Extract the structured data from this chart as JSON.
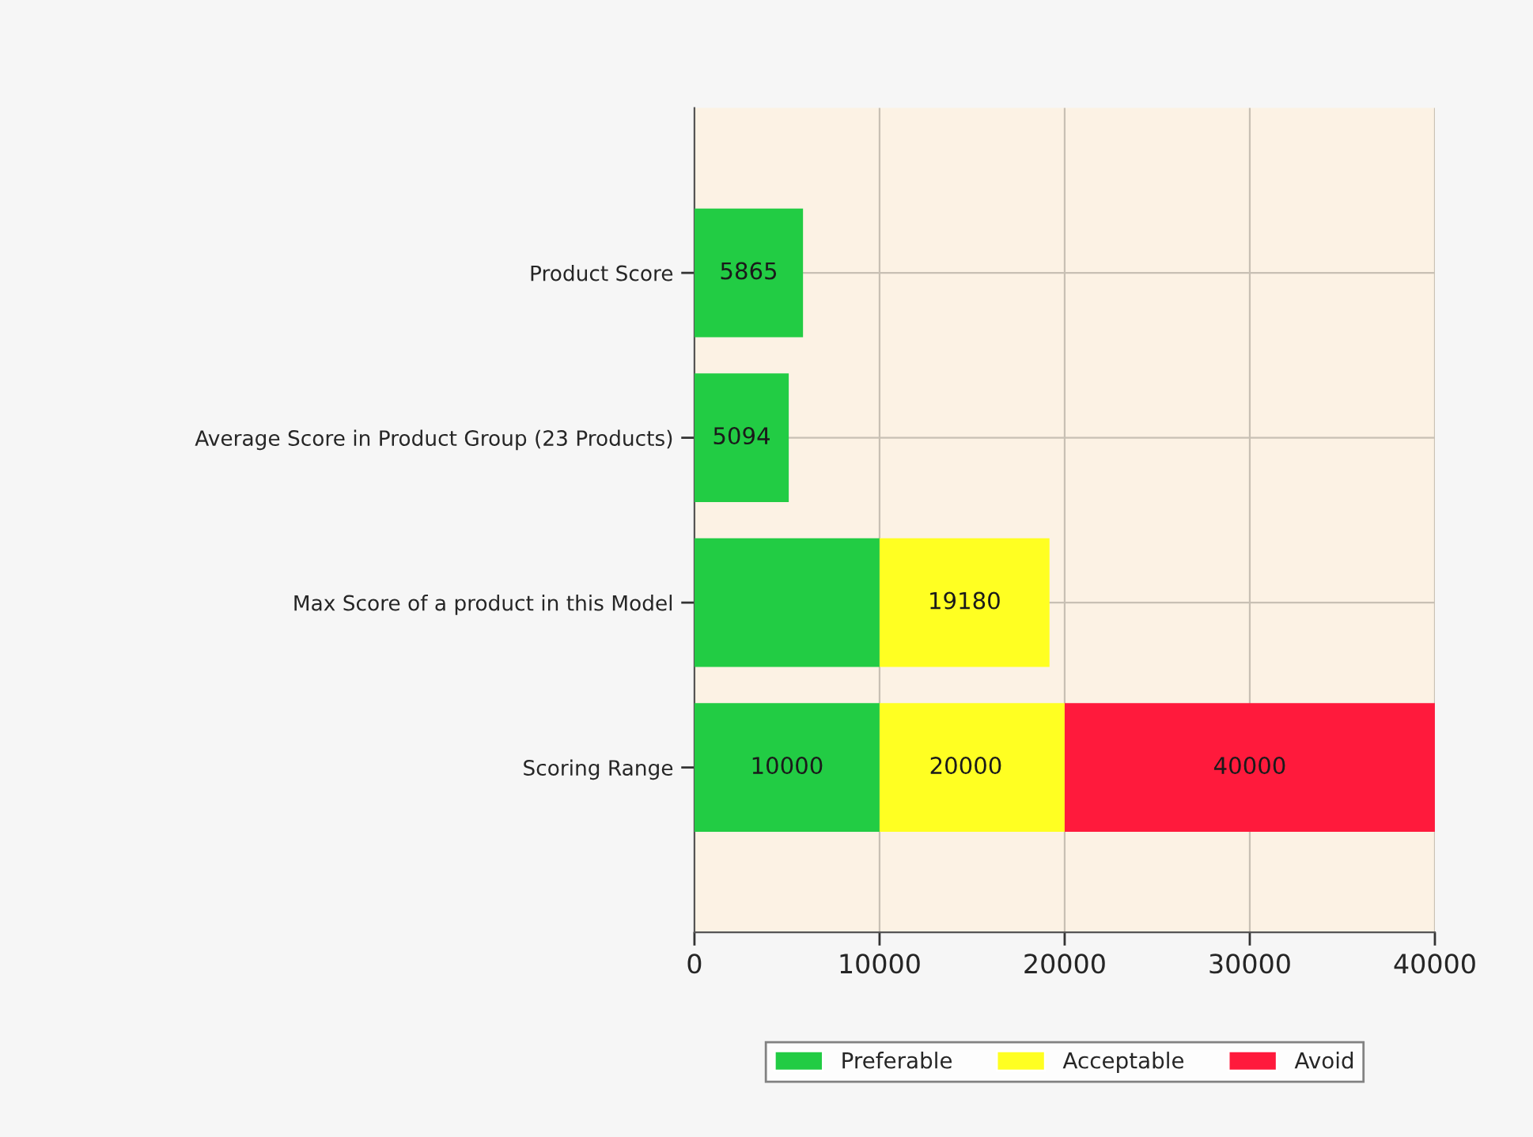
{
  "chart_data": {
    "type": "bar",
    "orientation": "horizontal",
    "stacked": true,
    "categories": [
      "Product Score",
      "Average Score in Product Group (23 Products)",
      "Max Score of a product in this Model",
      "Scoring Range"
    ],
    "series": [
      {
        "name": "Preferable",
        "color": "#22cc44",
        "values": [
          5865,
          5094,
          10000,
          10000
        ],
        "value_labels": [
          null,
          null,
          null,
          "10000"
        ]
      },
      {
        "name": "Acceptable",
        "color": "#ffff22",
        "values": [
          null,
          null,
          9180,
          10000
        ]
      },
      {
        "name": "Avoid",
        "color": "#ff1a3c",
        "values": [
          null,
          null,
          null,
          20000
        ]
      }
    ],
    "totals": [
      "5865",
      "5094",
      "19180",
      "40000"
    ],
    "annotations": [
      {
        "text": "20000",
        "x": 20000,
        "y": "Scoring Range"
      }
    ],
    "xlim": [
      0,
      40000
    ],
    "xticks": [
      0,
      10000,
      20000,
      30000,
      40000
    ],
    "grid": true,
    "legend": "bottom"
  }
}
